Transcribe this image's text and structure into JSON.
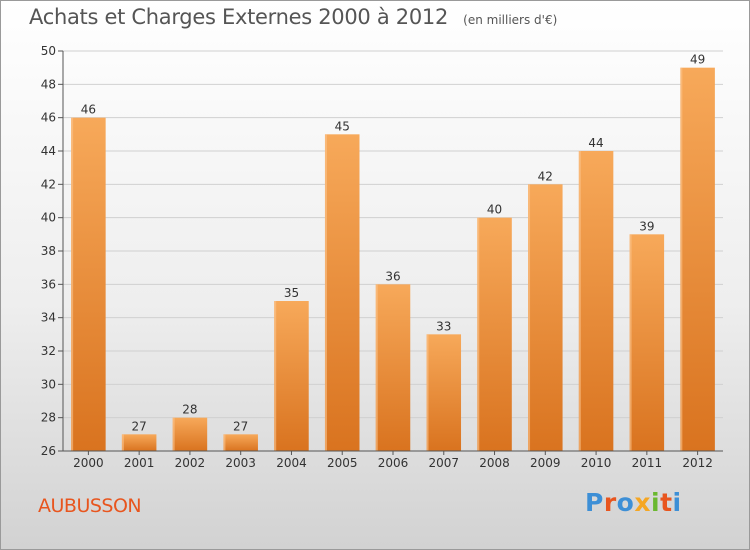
{
  "title": "Achats et Charges Externes 2000 à 2012",
  "unit": "(en milliers d'€)",
  "town": "AUBUSSON",
  "logo": {
    "text": "Proxiti",
    "letter_colors": [
      "#3d8fd6",
      "#e8551e",
      "#3d8fd6",
      "#f5a623",
      "#6ab82f",
      "#e8551e",
      "#3d8fd6"
    ]
  },
  "colors": {
    "bar_top": "#f7a95a",
    "bar_bottom": "#d9731f",
    "grid": "#d0d0d0"
  },
  "chart_data": {
    "type": "bar",
    "title": "Achats et Charges Externes 2000 à 2012",
    "subtitle": "(en milliers d'€)",
    "categories": [
      "2000",
      "2001",
      "2002",
      "2003",
      "2004",
      "2005",
      "2006",
      "2007",
      "2008",
      "2009",
      "2010",
      "2011",
      "2012"
    ],
    "values": [
      46,
      27,
      28,
      27,
      35,
      45,
      36,
      33,
      40,
      42,
      44,
      39,
      49
    ],
    "ylim": [
      26,
      50
    ],
    "yticks": [
      26,
      28,
      30,
      32,
      34,
      36,
      38,
      40,
      42,
      44,
      46,
      48,
      50
    ],
    "grid": true,
    "xlabel": "",
    "ylabel": ""
  }
}
